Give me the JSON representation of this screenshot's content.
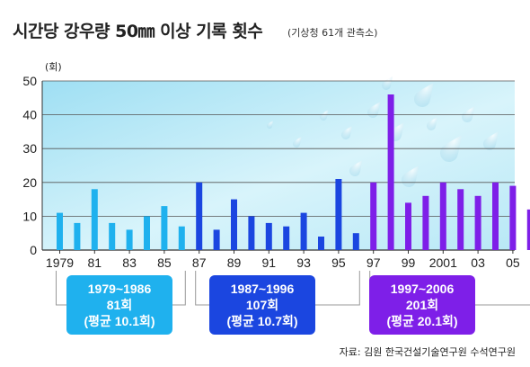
{
  "title": "시간당 강우량 50㎜ 이상 기록 횟수",
  "subtitle": "(기상청 61개 관측소)",
  "unit": "(회)",
  "source": "자료: 김원 한국건설기술연구원 수석연구원",
  "chart_data": {
    "type": "bar",
    "years": [
      "1979",
      "1980",
      "1981",
      "1982",
      "1983",
      "1984",
      "1985",
      "1986",
      "1987",
      "1988",
      "1989",
      "1990",
      "1991",
      "1992",
      "1993",
      "1994",
      "1995",
      "1996",
      "1997",
      "1998",
      "1999",
      "2000",
      "2001",
      "2002",
      "2003",
      "2004",
      "2005",
      "2006"
    ],
    "values": [
      11,
      8,
      18,
      8,
      6,
      10,
      13,
      7,
      20,
      6,
      15,
      10,
      8,
      7,
      11,
      4,
      21,
      5,
      20,
      46,
      14,
      16,
      20,
      18,
      16,
      20,
      19,
      12
    ],
    "tick_labels": [
      "1979",
      "81",
      "83",
      "85",
      "87",
      "89",
      "91",
      "93",
      "95",
      "97",
      "99",
      "2001",
      "03",
      "05"
    ],
    "tick_positions": [
      0,
      2,
      4,
      6,
      8,
      10,
      12,
      14,
      16,
      18,
      20,
      22,
      24,
      26
    ],
    "yticks": [
      0,
      10,
      20,
      30,
      40,
      50
    ],
    "ylim": [
      0,
      50
    ],
    "grid": true,
    "period_colors": [
      "#1fb1ee",
      "#1b46e0",
      "#7e1fe8"
    ],
    "periods": [
      {
        "range": "1979~1986",
        "count": "81회",
        "avg": "(평균 10.1회)"
      },
      {
        "range": "1987~1996",
        "count": "107회",
        "avg": "(평균 10.7회)"
      },
      {
        "range": "1997~2006",
        "count": "201회",
        "avg": "(평균 20.1회)"
      }
    ]
  }
}
